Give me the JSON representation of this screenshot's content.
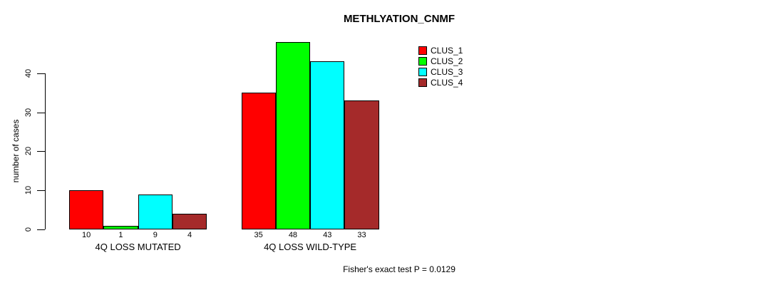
{
  "title": "METHLYATION_CNMF",
  "footer_note": "Fisher's exact test P = 0.0129",
  "y_axis": {
    "label": "number of cases",
    "ticks": [
      0,
      10,
      20,
      30,
      40
    ]
  },
  "legend": {
    "position": "top-right",
    "items": [
      {
        "label": "CLUS_1",
        "color": "#ff0000"
      },
      {
        "label": "CLUS_2",
        "color": "#00ff00"
      },
      {
        "label": "CLUS_3",
        "color": "#00ffff"
      },
      {
        "label": "CLUS_4",
        "color": "#a52a2a"
      }
    ]
  },
  "chart_data": {
    "type": "bar",
    "title": "METHLYATION_CNMF",
    "xlabel": "",
    "ylabel": "number of cases",
    "ylim": [
      0,
      48
    ],
    "yticks": [
      0,
      10,
      20,
      30,
      40
    ],
    "grid": false,
    "legend_position": "top-right",
    "categories": [
      "4Q LOSS MUTATED",
      "4Q LOSS WILD-TYPE"
    ],
    "series": [
      {
        "name": "CLUS_1",
        "color": "#ff0000",
        "values": [
          10,
          35
        ]
      },
      {
        "name": "CLUS_2",
        "color": "#00ff00",
        "values": [
          1,
          48
        ]
      },
      {
        "name": "CLUS_3",
        "color": "#00ffff",
        "values": [
          9,
          43
        ]
      },
      {
        "name": "CLUS_4",
        "color": "#a52a2a",
        "values": [
          4,
          33
        ]
      }
    ],
    "bar_value_labels": [
      [
        10,
        1,
        9,
        4
      ],
      [
        35,
        48,
        43,
        33
      ]
    ],
    "annotation": "Fisher's exact test P = 0.0129"
  }
}
